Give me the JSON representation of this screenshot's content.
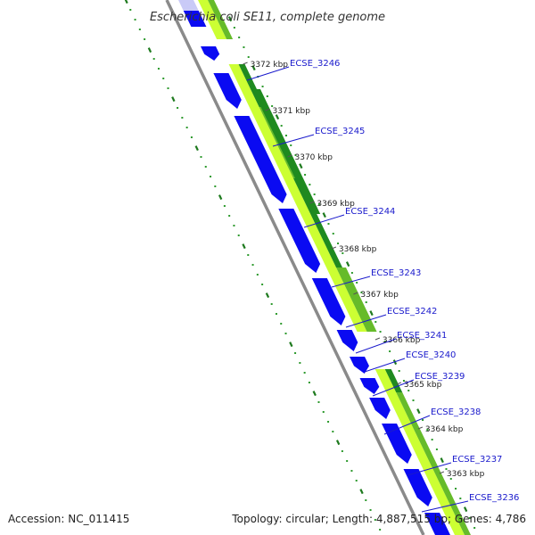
{
  "title": "Escherichia coli SE11, complete genome",
  "accession": "Accession: NC_011415",
  "summary": "Topology: circular; Length: 4,887,515 bp; Genes: 4,786",
  "colors": {
    "cds": "#0a0af2",
    "cds_light": "#c9caf7",
    "leader": "#1a1acc",
    "backbone": "#8a8a8a",
    "gc_light": "#ccff33",
    "gc_dark": "#1f8a1f",
    "gc_mid": "#66bb2a",
    "ticks_dotted": "#2e9a2e",
    "ticks_dash": "#1e7a1e"
  },
  "ruler_labels": [
    "3372 kbp",
    "3371 kbp",
    "3370 kbp",
    "3369 kbp",
    "3368 kbp",
    "3367 kbp",
    "3366 kbp",
    "3365 kbp",
    "3364 kbp",
    "3363 kbp"
  ],
  "gene_labels": [
    "ECSE_3246",
    "ECSE_3245",
    "ECSE_3244",
    "ECSE_3243",
    "ECSE_3242",
    "ECSE_3241",
    "ECSE_3240",
    "ECSE_3239",
    "ECSE_3238",
    "ECSE_3237",
    "ECSE_3236"
  ]
}
